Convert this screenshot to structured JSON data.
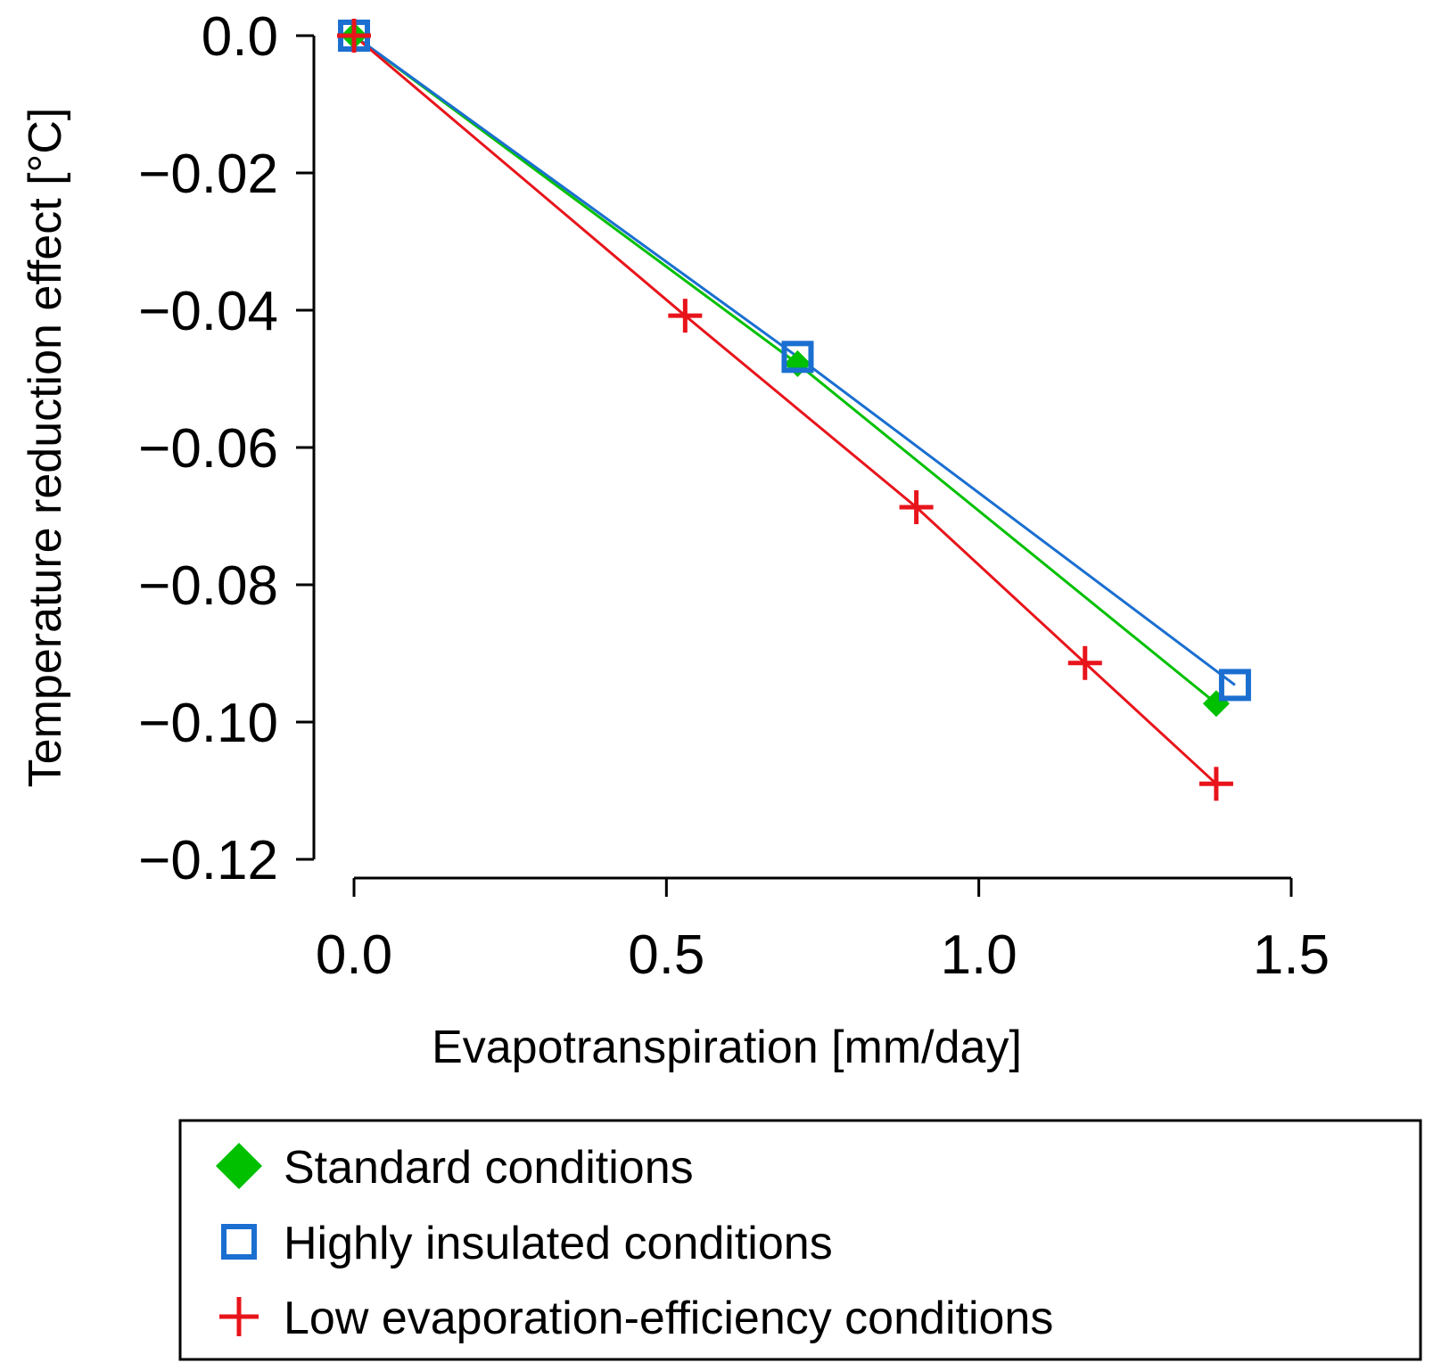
{
  "chart_data": {
    "type": "line",
    "title": "",
    "xlabel": "Evapotranspiration [mm/day]",
    "ylabel": "Temperature reduction effect [°C]",
    "xlim": [
      0.0,
      1.5
    ],
    "ylim": [
      -0.12,
      0.0
    ],
    "xticks": [
      0.0,
      0.5,
      1.0,
      1.5
    ],
    "xtick_labels": [
      "0.0",
      "0.5",
      "1.0",
      "1.5"
    ],
    "yticks": [
      0.0,
      -0.02,
      -0.04,
      -0.06,
      -0.08,
      -0.1,
      -0.12
    ],
    "ytick_labels": [
      "0.0",
      "−0.02",
      "−0.04",
      "−0.06",
      "−0.08",
      "−0.10",
      "−0.12"
    ],
    "grid": false,
    "legend_position": "bottom",
    "series": [
      {
        "name": "Standard conditions",
        "marker": "diamond",
        "color": "#00c000",
        "x": [
          0.0,
          0.71,
          1.38
        ],
        "y": [
          0.0,
          -0.0478,
          -0.0973
        ]
      },
      {
        "name": "Highly insulated conditions",
        "marker": "square",
        "color": "#1a6fd0",
        "x": [
          0.0,
          0.71,
          1.41
        ],
        "y": [
          0.0,
          -0.0468,
          -0.0946
        ]
      },
      {
        "name": "Low evaporation-efficiency conditions",
        "marker": "plus",
        "color": "#e8141b",
        "x": [
          0.0,
          0.53,
          0.9,
          1.17,
          1.38
        ],
        "y": [
          0.0,
          -0.0408,
          -0.0687,
          -0.0914,
          -0.109
        ]
      }
    ]
  }
}
